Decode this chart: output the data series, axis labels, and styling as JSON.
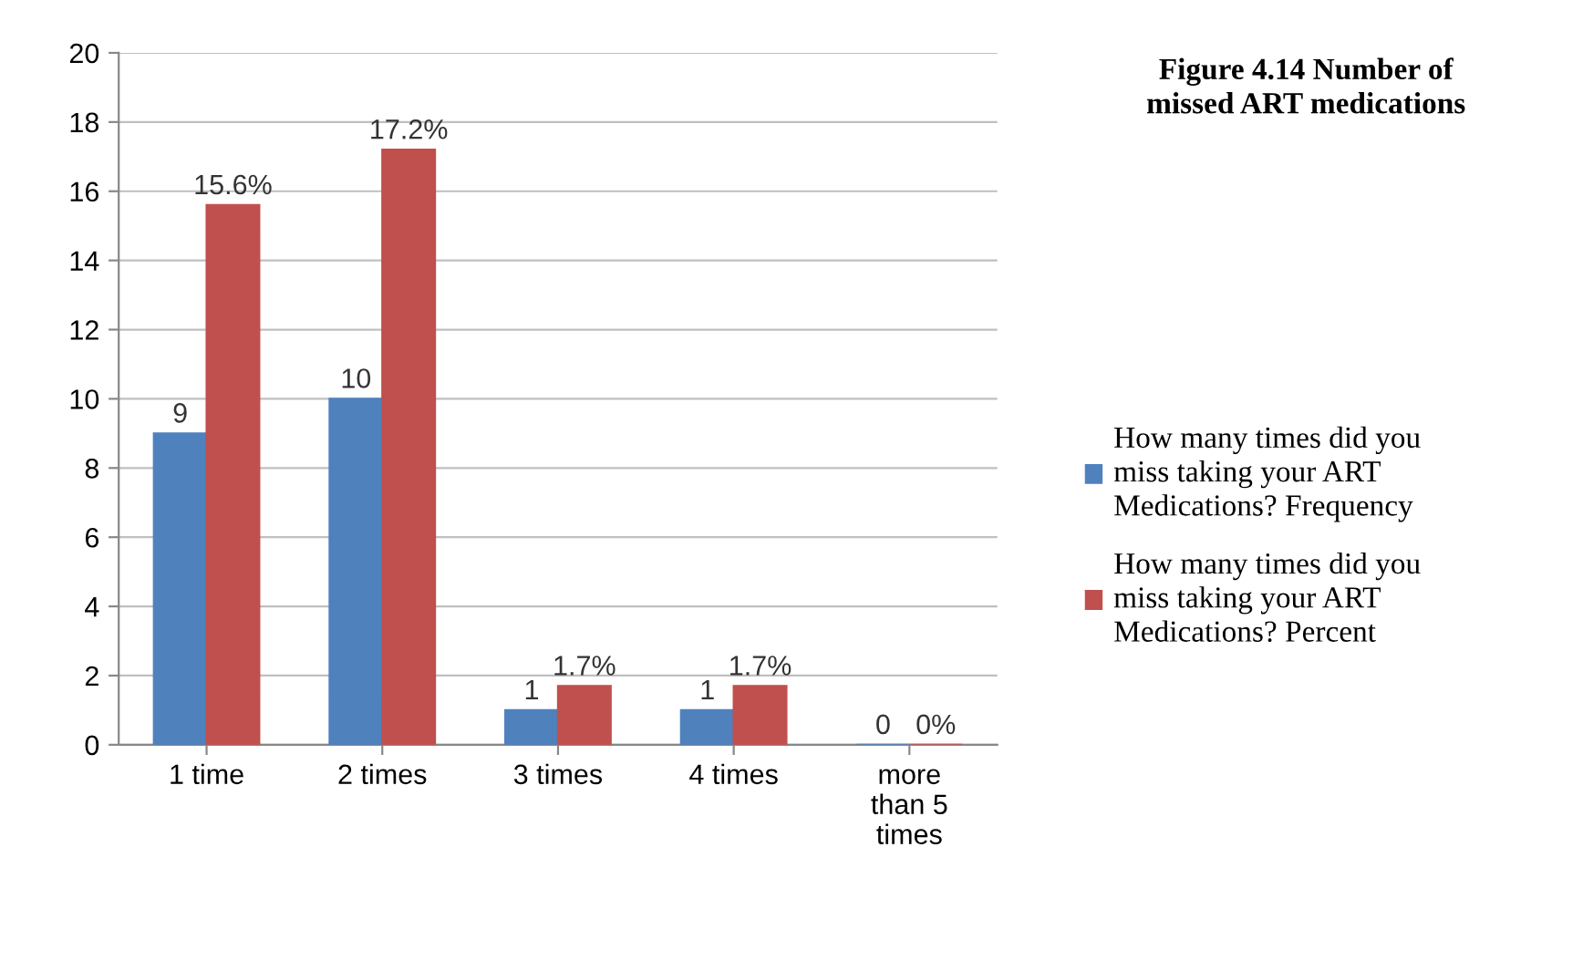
{
  "chart_data": {
    "type": "bar",
    "title": "Figure 4.14 Number of missed ART medications",
    "categories": [
      "1 time",
      "2 times",
      "3 times",
      "4 times",
      "more than 5 times"
    ],
    "series": [
      {
        "name": "How many times did you miss taking your ART Medications? Frequency",
        "color": "#4f81bd",
        "values": [
          9,
          10,
          1,
          1,
          0
        ],
        "value_labels": [
          "9",
          "10",
          "1",
          "1",
          "0"
        ]
      },
      {
        "name": "How many times did you miss taking your ART Medications? Percent",
        "color": "#c0504d",
        "values": [
          15.6,
          17.2,
          1.7,
          1.7,
          0
        ],
        "value_labels": [
          "15.6%",
          "17.2%",
          "1.7%",
          "1.7%",
          "0%"
        ]
      }
    ],
    "ylim": [
      0,
      20
    ],
    "yticks": [
      0,
      2,
      4,
      6,
      8,
      10,
      12,
      14,
      16,
      18,
      20
    ],
    "grid": "y",
    "legend": "right"
  }
}
